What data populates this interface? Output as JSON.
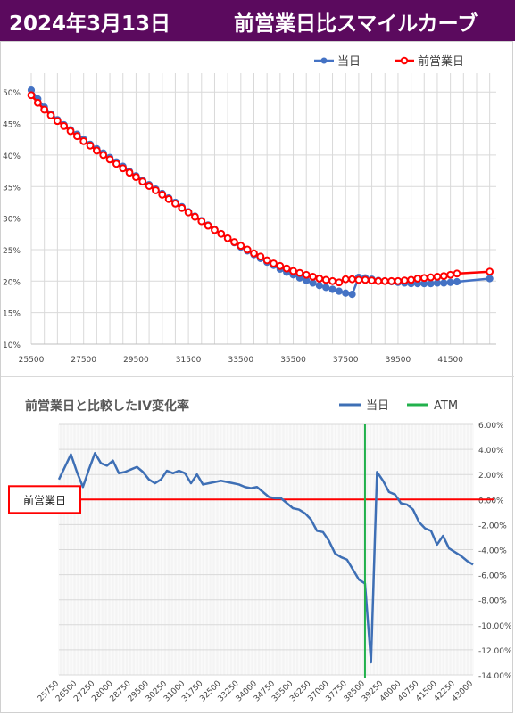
{
  "header": {
    "date": "2024年3月13日",
    "title": "前営業日比スマイルカーブ"
  },
  "colors": {
    "header_bg": "#5b0a5e",
    "current": "#4472c4",
    "previous": "#ff0000",
    "iv_change": "#3e6fb5",
    "atm": "#22b14c",
    "baseline": "#ff0000"
  },
  "chart_data": [
    {
      "type": "line",
      "title": "",
      "legend_position": "top-right",
      "grid": true,
      "xlim": [
        25500,
        43250
      ],
      "ylim": [
        10,
        53
      ],
      "x_ticks": [
        "25500",
        "27500",
        "29500",
        "31500",
        "33500",
        "35500",
        "37500",
        "39500",
        "41500"
      ],
      "y_ticks": [
        "10%",
        "15%",
        "20%",
        "25%",
        "30%",
        "35%",
        "40%",
        "45%",
        "50%"
      ],
      "series": [
        {
          "name": "当日",
          "color": "#4472c4",
          "x": [
            25500,
            25750,
            26000,
            26250,
            26500,
            26750,
            27000,
            27250,
            27500,
            27750,
            28000,
            28250,
            28500,
            28750,
            29000,
            29250,
            29500,
            29750,
            30000,
            30250,
            30500,
            30750,
            31000,
            31250,
            31500,
            31750,
            32000,
            32250,
            32500,
            32750,
            33000,
            33250,
            33500,
            33750,
            34000,
            34250,
            34500,
            34750,
            35000,
            35250,
            35500,
            35750,
            36000,
            36250,
            36500,
            36750,
            37000,
            37250,
            37500,
            37750,
            38000,
            38250,
            38500,
            38750,
            39000,
            39250,
            39500,
            39750,
            40000,
            40250,
            40500,
            40750,
            41000,
            41250,
            41500,
            41750,
            43000
          ],
          "y": [
            50.3,
            48.9,
            47.6,
            46.5,
            45.6,
            44.8,
            44.0,
            43.3,
            42.5,
            41.7,
            41.0,
            40.3,
            39.6,
            38.9,
            38.2,
            37.4,
            36.7,
            36.0,
            35.3,
            34.6,
            33.9,
            33.2,
            32.5,
            31.8,
            31.0,
            30.3,
            29.6,
            28.9,
            28.2,
            27.5,
            26.8,
            26.1,
            25.4,
            24.8,
            24.2,
            23.6,
            23.0,
            22.5,
            21.9,
            21.4,
            21.0,
            20.5,
            20.1,
            19.7,
            19.3,
            19.0,
            18.7,
            18.4,
            18.1,
            17.9,
            20.6,
            20.5,
            20.3,
            20.1,
            20.0,
            19.9,
            19.8,
            19.7,
            19.6,
            19.6,
            19.6,
            19.6,
            19.7,
            19.7,
            19.8,
            19.9,
            20.4
          ]
        },
        {
          "name": "前営業日",
          "color": "#ff0000",
          "x": [
            25500,
            25750,
            26000,
            26250,
            26500,
            26750,
            27000,
            27250,
            27500,
            27750,
            28000,
            28250,
            28500,
            28750,
            29000,
            29250,
            29500,
            29750,
            30000,
            30250,
            30500,
            30750,
            31000,
            31250,
            31500,
            31750,
            32000,
            32250,
            32500,
            32750,
            33000,
            33250,
            33500,
            33750,
            34000,
            34250,
            34500,
            34750,
            35000,
            35250,
            35500,
            35750,
            36000,
            36250,
            36500,
            36750,
            37000,
            37250,
            37500,
            37750,
            38000,
            38250,
            38500,
            38750,
            39000,
            39250,
            39500,
            39750,
            40000,
            40250,
            40500,
            40750,
            41000,
            41250,
            41500,
            41750,
            43000
          ],
          "y": [
            49.5,
            48.3,
            47.2,
            46.3,
            45.4,
            44.6,
            43.8,
            43.0,
            42.2,
            41.5,
            40.7,
            40.0,
            39.3,
            38.6,
            37.9,
            37.2,
            36.5,
            35.8,
            35.1,
            34.4,
            33.7,
            33.0,
            32.3,
            31.6,
            30.9,
            30.2,
            29.5,
            28.8,
            28.1,
            27.5,
            26.8,
            26.2,
            25.6,
            25.0,
            24.4,
            23.9,
            23.3,
            22.8,
            22.4,
            22.0,
            21.6,
            21.3,
            21.0,
            20.7,
            20.4,
            20.2,
            20.0,
            19.8,
            20.3,
            20.3,
            20.2,
            20.2,
            20.1,
            20.0,
            20.0,
            20.0,
            20.0,
            20.1,
            20.2,
            20.4,
            20.5,
            20.6,
            20.7,
            20.8,
            21.0,
            21.2,
            21.5
          ]
        }
      ]
    },
    {
      "type": "line",
      "title": "前営業日と比較したIV変化率",
      "legend_position": "top-right",
      "grid": true,
      "xlim": [
        25750,
        43000
      ],
      "ylim": [
        -14,
        6
      ],
      "baseline_label": "前営業日",
      "atm_strike": 38500,
      "x_ticks": [
        "25750",
        "26500",
        "27250",
        "28000",
        "28750",
        "29500",
        "30250",
        "31000",
        "31750",
        "32500",
        "33250",
        "34000",
        "34750",
        "35500",
        "36250",
        "37000",
        "37750",
        "38500",
        "39250",
        "40000",
        "40750",
        "41500",
        "42250",
        "43000"
      ],
      "x_tick_values": [
        25750,
        26500,
        27250,
        28000,
        28750,
        29500,
        30250,
        31000,
        31750,
        32500,
        33250,
        34000,
        34750,
        35500,
        36250,
        37000,
        37750,
        38500,
        39250,
        40000,
        40750,
        41500,
        42250,
        43000
      ],
      "y_ticks": [
        "6.00%",
        "4.00%",
        "2.00%",
        "0.00%",
        "-2.00%",
        "-4.00%",
        "-6.00%",
        "-8.00%",
        "-10.00%",
        "-12.00%",
        "-14.00%"
      ],
      "y_tick_values": [
        6,
        4,
        2,
        0,
        -2,
        -4,
        -6,
        -8,
        -10,
        -12,
        -14
      ],
      "series": [
        {
          "name": "当日",
          "color": "#3e6fb5",
          "x": [
            25750,
            26000,
            26250,
            26500,
            26750,
            27000,
            27250,
            27500,
            27750,
            28000,
            28250,
            28500,
            28750,
            29000,
            29250,
            29500,
            29750,
            30000,
            30250,
            30500,
            30750,
            31000,
            31250,
            31500,
            31750,
            32000,
            32250,
            32500,
            32750,
            33000,
            33250,
            33500,
            33750,
            34000,
            34250,
            34500,
            34750,
            35000,
            35250,
            35500,
            35750,
            36000,
            36250,
            36500,
            36750,
            37000,
            37250,
            37500,
            37750,
            38000,
            38250,
            38500,
            38750,
            39000,
            39250,
            39500,
            39750,
            40000,
            40250,
            40500,
            40750,
            41000,
            41250,
            41500,
            41750,
            42000,
            42250,
            42500,
            42750,
            43000
          ],
          "y": [
            1.6,
            2.6,
            3.6,
            2.2,
            1.0,
            2.4,
            3.7,
            2.9,
            2.7,
            3.1,
            2.1,
            2.2,
            2.4,
            2.6,
            2.2,
            1.6,
            1.3,
            1.6,
            2.3,
            2.1,
            2.3,
            2.1,
            1.3,
            2.0,
            1.2,
            1.3,
            1.4,
            1.5,
            1.4,
            1.3,
            1.2,
            1.0,
            0.9,
            1.0,
            0.6,
            0.2,
            0.1,
            0.1,
            -0.3,
            -0.7,
            -0.8,
            -1.1,
            -1.6,
            -2.5,
            -2.6,
            -3.3,
            -4.3,
            -4.6,
            -4.8,
            -5.6,
            -6.4,
            -6.7,
            -13.0,
            2.2,
            1.5,
            0.6,
            0.4,
            -0.3,
            -0.4,
            -0.8,
            -1.8,
            -2.3,
            -2.5,
            -3.6,
            -2.9,
            -3.9,
            -4.2,
            -4.5,
            -4.9,
            -5.2
          ]
        }
      ],
      "atm_series": {
        "name": "ATM",
        "color": "#22b14c"
      }
    }
  ]
}
